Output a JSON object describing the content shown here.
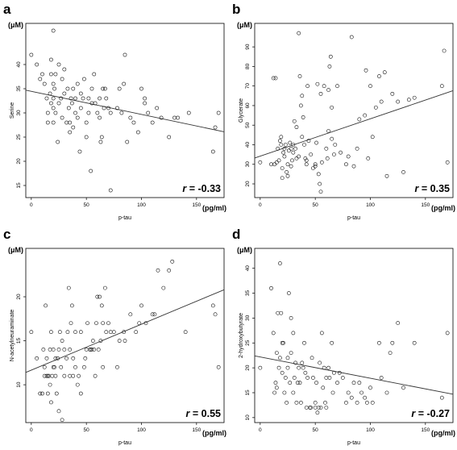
{
  "chart_data": [
    {
      "type": "scatter",
      "panel_label": "a",
      "y_unit": "(μM)",
      "x_unit": "(pg/ml)",
      "xlabel": "p-tau",
      "ylabel": "Serine",
      "xlim": [
        -5,
        175
      ],
      "ylim": [
        12.5,
        48.5
      ],
      "xticks": [
        0,
        50,
        100,
        150
      ],
      "yticks": [
        15,
        20,
        25,
        30,
        35,
        40
      ],
      "r_prefix": "r",
      "r_value": "= -0.33",
      "trend_line": {
        "x": [
          -5,
          175
        ],
        "y": [
          34.7,
          26.1
        ]
      },
      "points": [
        [
          0,
          42
        ],
        [
          5,
          40
        ],
        [
          8,
          37
        ],
        [
          10,
          38
        ],
        [
          12,
          36
        ],
        [
          14,
          33
        ],
        [
          15,
          30
        ],
        [
          15,
          28
        ],
        [
          17,
          34
        ],
        [
          18,
          32
        ],
        [
          18,
          38
        ],
        [
          18,
          41
        ],
        [
          20,
          36
        ],
        [
          20,
          33
        ],
        [
          20,
          31
        ],
        [
          20,
          28
        ],
        [
          21,
          35
        ],
        [
          22,
          38
        ],
        [
          22,
          30
        ],
        [
          24,
          24
        ],
        [
          25,
          32
        ],
        [
          25,
          40
        ],
        [
          27,
          33
        ],
        [
          28,
          37
        ],
        [
          28,
          29
        ],
        [
          30,
          34
        ],
        [
          30,
          39
        ],
        [
          32,
          28
        ],
        [
          33,
          35
        ],
        [
          34,
          31
        ],
        [
          35,
          26
        ],
        [
          35,
          28
        ],
        [
          36,
          33
        ],
        [
          37,
          32
        ],
        [
          38,
          27
        ],
        [
          38,
          35
        ],
        [
          40,
          30
        ],
        [
          40,
          33
        ],
        [
          42,
          29
        ],
        [
          42,
          36
        ],
        [
          44,
          22
        ],
        [
          45,
          31
        ],
        [
          45,
          34
        ],
        [
          47,
          33
        ],
        [
          48,
          37
        ],
        [
          50,
          25
        ],
        [
          50,
          28
        ],
        [
          52,
          30
        ],
        [
          52,
          33
        ],
        [
          54,
          18
        ],
        [
          55,
          35
        ],
        [
          55,
          32
        ],
        [
          57,
          38
        ],
        [
          58,
          32
        ],
        [
          60,
          30
        ],
        [
          62,
          29
        ],
        [
          62,
          33
        ],
        [
          63,
          24
        ],
        [
          64,
          25
        ],
        [
          65,
          35
        ],
        [
          66,
          31
        ],
        [
          67,
          35
        ],
        [
          68,
          33
        ],
        [
          70,
          31
        ],
        [
          72,
          30
        ],
        [
          72,
          14
        ],
        [
          78,
          31
        ],
        [
          80,
          35
        ],
        [
          82,
          30
        ],
        [
          84,
          36
        ],
        [
          85,
          42
        ],
        [
          87,
          24
        ],
        [
          90,
          29
        ],
        [
          93,
          28
        ],
        [
          97,
          26
        ],
        [
          100,
          35
        ],
        [
          103,
          32
        ],
        [
          103,
          33
        ],
        [
          106,
          30
        ],
        [
          110,
          28
        ],
        [
          114,
          31
        ],
        [
          118,
          29
        ],
        [
          125,
          25
        ],
        [
          130,
          29
        ],
        [
          133,
          29
        ],
        [
          143,
          30
        ],
        [
          165,
          22
        ],
        [
          167,
          27
        ],
        [
          170,
          30
        ],
        [
          20,
          47
        ]
      ]
    },
    {
      "type": "scatter",
      "panel_label": "b",
      "y_unit": "(μM)",
      "x_unit": "(pg/ml)",
      "xlabel": "p-tau",
      "ylabel": "Glycerate",
      "xlim": [
        -5,
        175
      ],
      "ylim": [
        13,
        102
      ],
      "xticks": [
        0,
        50,
        100,
        150
      ],
      "yticks": [
        20,
        30,
        40,
        50,
        60,
        70,
        80,
        90
      ],
      "r_prefix": "r",
      "r_value": "= 0.35",
      "trend_line": {
        "x": [
          -5,
          175
        ],
        "y": [
          33.2,
          67.6
        ]
      },
      "points": [
        [
          0,
          31
        ],
        [
          10,
          30
        ],
        [
          12,
          74
        ],
        [
          13,
          30
        ],
        [
          14,
          74
        ],
        [
          15,
          31
        ],
        [
          16,
          38
        ],
        [
          17,
          32
        ],
        [
          18,
          42
        ],
        [
          19,
          40
        ],
        [
          19,
          44
        ],
        [
          20,
          23
        ],
        [
          20,
          28
        ],
        [
          21,
          36
        ],
        [
          22,
          38
        ],
        [
          22,
          34
        ],
        [
          23,
          40
        ],
        [
          24,
          26
        ],
        [
          25,
          24
        ],
        [
          25,
          30
        ],
        [
          26,
          37
        ],
        [
          27,
          41
        ],
        [
          28,
          38
        ],
        [
          28,
          29
        ],
        [
          29,
          32
        ],
        [
          30,
          36
        ],
        [
          30,
          40
        ],
        [
          31,
          52
        ],
        [
          32,
          38
        ],
        [
          33,
          33
        ],
        [
          33,
          49
        ],
        [
          35,
          97
        ],
        [
          35,
          34
        ],
        [
          36,
          75
        ],
        [
          37,
          60
        ],
        [
          38,
          44
        ],
        [
          38,
          65
        ],
        [
          39,
          54
        ],
        [
          40,
          40
        ],
        [
          41,
          33
        ],
        [
          42,
          30
        ],
        [
          42,
          32
        ],
        [
          43,
          70
        ],
        [
          44,
          42
        ],
        [
          46,
          35
        ],
        [
          48,
          28
        ],
        [
          50,
          30
        ],
        [
          50,
          29
        ],
        [
          51,
          41
        ],
        [
          52,
          71
        ],
        [
          53,
          25
        ],
        [
          54,
          20
        ],
        [
          55,
          16
        ],
        [
          55,
          66
        ],
        [
          56,
          31
        ],
        [
          58,
          70
        ],
        [
          60,
          38
        ],
        [
          61,
          33
        ],
        [
          62,
          68
        ],
        [
          62,
          47
        ],
        [
          63,
          80
        ],
        [
          64,
          85
        ],
        [
          65,
          59
        ],
        [
          65,
          43
        ],
        [
          67,
          35
        ],
        [
          68,
          40
        ],
        [
          70,
          70
        ],
        [
          73,
          36
        ],
        [
          78,
          30
        ],
        [
          80,
          34
        ],
        [
          83,
          95
        ],
        [
          85,
          29
        ],
        [
          88,
          38
        ],
        [
          90,
          53
        ],
        [
          95,
          55
        ],
        [
          96,
          78
        ],
        [
          98,
          33
        ],
        [
          100,
          70
        ],
        [
          102,
          44
        ],
        [
          105,
          59
        ],
        [
          108,
          75
        ],
        [
          110,
          62
        ],
        [
          113,
          77
        ],
        [
          115,
          24
        ],
        [
          120,
          66
        ],
        [
          125,
          62
        ],
        [
          130,
          26
        ],
        [
          135,
          63
        ],
        [
          140,
          64
        ],
        [
          165,
          70
        ],
        [
          167,
          88
        ],
        [
          170,
          31
        ]
      ]
    },
    {
      "type": "scatter",
      "panel_label": "c",
      "y_unit": "(μM)",
      "x_unit": "(pg/ml)",
      "xlabel": "p-tau",
      "ylabel": "N-acetylneuraminate",
      "xlim": [
        -5,
        175
      ],
      "ylim": [
        5.7,
        25.5
      ],
      "xticks": [
        0,
        50,
        100,
        150
      ],
      "yticks": [
        10,
        15,
        20
      ],
      "r_prefix": "r",
      "r_value": "= 0.55",
      "trend_line": {
        "x": [
          -5,
          175
        ],
        "y": [
          11.4,
          20.8
        ]
      },
      "points": [
        [
          0,
          16
        ],
        [
          5,
          13
        ],
        [
          8,
          9
        ],
        [
          10,
          9
        ],
        [
          11,
          14
        ],
        [
          12,
          11
        ],
        [
          12,
          12
        ],
        [
          13,
          19
        ],
        [
          14,
          11
        ],
        [
          14,
          13
        ],
        [
          15,
          9
        ],
        [
          15,
          11
        ],
        [
          16,
          11
        ],
        [
          17,
          10
        ],
        [
          17,
          14
        ],
        [
          18,
          8
        ],
        [
          18,
          16
        ],
        [
          19,
          11
        ],
        [
          20,
          12
        ],
        [
          20,
          14
        ],
        [
          21,
          12
        ],
        [
          22,
          11
        ],
        [
          22,
          13
        ],
        [
          23,
          9
        ],
        [
          24,
          13
        ],
        [
          25,
          7
        ],
        [
          25,
          14
        ],
        [
          26,
          16
        ],
        [
          27,
          12
        ],
        [
          28,
          6
        ],
        [
          28,
          15
        ],
        [
          30,
          11
        ],
        [
          30,
          14
        ],
        [
          32,
          13
        ],
        [
          33,
          16
        ],
        [
          34,
          21
        ],
        [
          35,
          11
        ],
        [
          35,
          14
        ],
        [
          36,
          17
        ],
        [
          37,
          19
        ],
        [
          38,
          11
        ],
        [
          38,
          13
        ],
        [
          40,
          16
        ],
        [
          40,
          12
        ],
        [
          42,
          10
        ],
        [
          43,
          11
        ],
        [
          45,
          16
        ],
        [
          45,
          9
        ],
        [
          48,
          12
        ],
        [
          49,
          13
        ],
        [
          50,
          14
        ],
        [
          51,
          17
        ],
        [
          53,
          14
        ],
        [
          54,
          14
        ],
        [
          55,
          14
        ],
        [
          56,
          15
        ],
        [
          57,
          14
        ],
        [
          58,
          11
        ],
        [
          59,
          17
        ],
        [
          60,
          20
        ],
        [
          61,
          14
        ],
        [
          62,
          20
        ],
        [
          63,
          15
        ],
        [
          64,
          19
        ],
        [
          65,
          12
        ],
        [
          65,
          17
        ],
        [
          67,
          21
        ],
        [
          68,
          16
        ],
        [
          70,
          17
        ],
        [
          72,
          16
        ],
        [
          75,
          16
        ],
        [
          78,
          12
        ],
        [
          80,
          15
        ],
        [
          84,
          16
        ],
        [
          85,
          15
        ],
        [
          90,
          18
        ],
        [
          95,
          16
        ],
        [
          98,
          17
        ],
        [
          100,
          19
        ],
        [
          104,
          17
        ],
        [
          110,
          18
        ],
        [
          112,
          18
        ],
        [
          115,
          23
        ],
        [
          120,
          21
        ],
        [
          125,
          23
        ],
        [
          128,
          24
        ],
        [
          140,
          16
        ],
        [
          165,
          19
        ],
        [
          167,
          18
        ],
        [
          170,
          12
        ]
      ]
    },
    {
      "type": "scatter",
      "panel_label": "d",
      "y_unit": "(μM)",
      "x_unit": "(pg/ml)",
      "xlabel": "p-tau",
      "ylabel": "2-hydroxybutyrate",
      "xlim": [
        -5,
        175
      ],
      "ylim": [
        9,
        44
      ],
      "xticks": [
        0,
        50,
        100,
        150
      ],
      "yticks": [
        10,
        15,
        20,
        25,
        30,
        35,
        40
      ],
      "r_prefix": "r",
      "r_value": "= -0.27",
      "trend_line": {
        "x": [
          -5,
          175
        ],
        "y": [
          22.4,
          14.7
        ]
      },
      "points": [
        [
          0,
          20
        ],
        [
          10,
          36
        ],
        [
          12,
          27
        ],
        [
          13,
          15
        ],
        [
          14,
          17
        ],
        [
          15,
          23
        ],
        [
          15,
          16
        ],
        [
          16,
          31
        ],
        [
          17,
          20
        ],
        [
          18,
          22
        ],
        [
          18,
          41
        ],
        [
          19,
          31
        ],
        [
          20,
          19
        ],
        [
          20,
          25
        ],
        [
          21,
          25
        ],
        [
          22,
          15
        ],
        [
          23,
          18
        ],
        [
          24,
          13
        ],
        [
          25,
          22
        ],
        [
          25,
          20
        ],
        [
          26,
          35
        ],
        [
          27,
          17
        ],
        [
          28,
          23
        ],
        [
          28,
          30
        ],
        [
          30,
          15
        ],
        [
          31,
          18
        ],
        [
          32,
          21
        ],
        [
          33,
          13
        ],
        [
          34,
          17
        ],
        [
          35,
          20
        ],
        [
          36,
          17
        ],
        [
          37,
          13
        ],
        [
          38,
          21
        ],
        [
          39,
          20
        ],
        [
          40,
          25
        ],
        [
          41,
          19
        ],
        [
          42,
          12
        ],
        [
          43,
          18
        ],
        [
          45,
          12
        ],
        [
          46,
          12
        ],
        [
          47,
          22
        ],
        [
          48,
          18
        ],
        [
          50,
          13
        ],
        [
          50,
          12
        ],
        [
          51,
          17
        ],
        [
          52,
          11
        ],
        [
          53,
          12
        ],
        [
          54,
          21
        ],
        [
          55,
          12
        ],
        [
          56,
          27
        ],
        [
          57,
          16
        ],
        [
          58,
          20
        ],
        [
          59,
          13
        ],
        [
          60,
          18
        ],
        [
          62,
          20
        ],
        [
          63,
          18
        ],
        [
          65,
          25
        ],
        [
          66,
          15
        ],
        [
          67,
          19
        ],
        [
          70,
          17
        ],
        [
          72,
          19
        ],
        [
          75,
          18
        ],
        [
          78,
          13
        ],
        [
          80,
          15
        ],
        [
          83,
          14
        ],
        [
          85,
          17
        ],
        [
          88,
          13
        ],
        [
          90,
          17
        ],
        [
          92,
          15
        ],
        [
          95,
          14
        ],
        [
          97,
          13
        ],
        [
          100,
          16
        ],
        [
          102,
          13
        ],
        [
          108,
          25
        ],
        [
          110,
          18
        ],
        [
          115,
          15
        ],
        [
          118,
          23
        ],
        [
          120,
          25
        ],
        [
          125,
          29
        ],
        [
          130,
          16
        ],
        [
          140,
          25
        ],
        [
          165,
          14
        ],
        [
          170,
          27
        ],
        [
          60,
          12
        ],
        [
          30,
          27
        ]
      ]
    }
  ]
}
